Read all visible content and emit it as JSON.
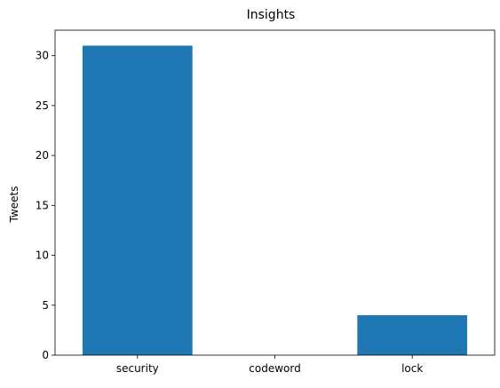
{
  "chart_data": {
    "type": "bar",
    "title": "Insights",
    "xlabel": "",
    "ylabel": "Tweets",
    "categories": [
      "security",
      "codeword",
      "lock"
    ],
    "values": [
      31,
      0,
      4
    ],
    "ylim": [
      0,
      32.55
    ],
    "yticks": [
      0,
      5,
      10,
      15,
      20,
      25,
      30
    ],
    "bar_color": "#1f77b4",
    "grid": false,
    "legend": "none"
  }
}
